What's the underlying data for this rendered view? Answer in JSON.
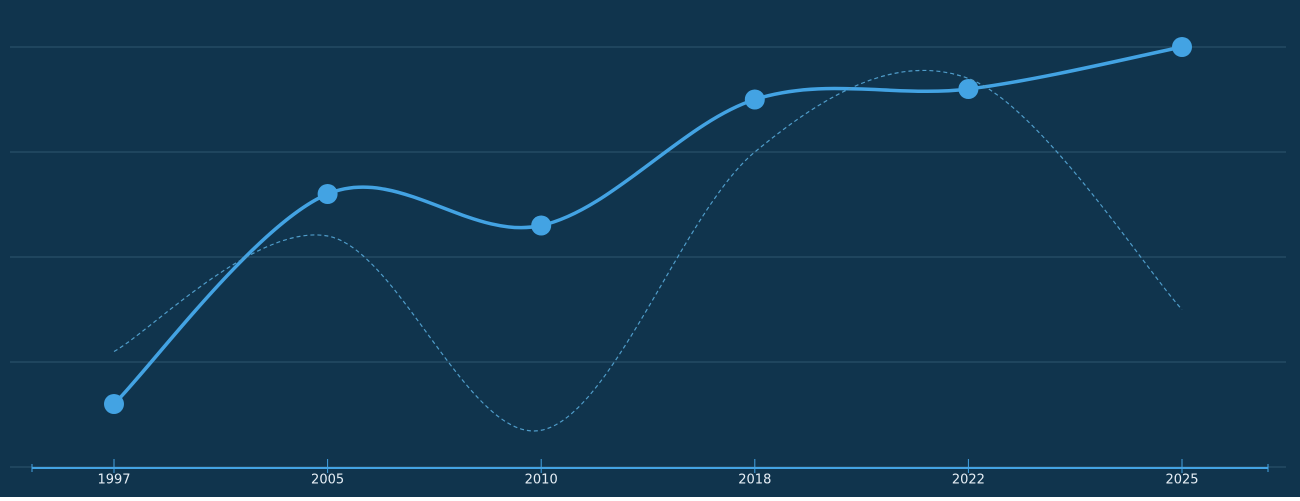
{
  "chart_data": {
    "type": "line",
    "categories": [
      "1997",
      "2005",
      "2010",
      "2018",
      "2022",
      "2025"
    ],
    "series": [
      {
        "color": "#43a3e3",
        "values": [
          0.6,
          2.6,
          2.3,
          3.5,
          3.6,
          4.0
        ],
        "markers": true,
        "dashed": false
      },
      {
        "color": "#4f9cc9",
        "values": [
          1.1,
          2.2,
          0.35,
          3.0,
          3.7,
          1.5
        ],
        "markers": false,
        "dashed": true
      }
    ],
    "ylim": [
      0,
      4
    ],
    "yticks": [
      0,
      1,
      2,
      3,
      4
    ],
    "grid": true,
    "background": "#10344d"
  }
}
